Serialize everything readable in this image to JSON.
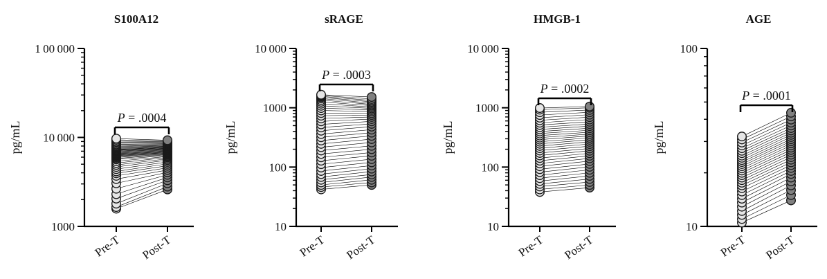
{
  "colors": {
    "pre_fill": "#e6e6e6",
    "post_fill": "#808080",
    "marker_stroke": "#1a1a1a",
    "axis": "#000000",
    "pair_line": "#000000"
  },
  "chart_data": [
    {
      "type": "scatter",
      "title": "S100A12",
      "ylabel": "pg/mL",
      "yscale": "log",
      "ylim": [
        1000,
        100000
      ],
      "yticks": [
        1000,
        10000,
        100000
      ],
      "ytick_labels": [
        "1000",
        "10 000",
        "1 00 000"
      ],
      "categories": [
        "Pre-T",
        "Post-T"
      ],
      "p_value": ".0004",
      "series": [
        {
          "name": "Pre-T",
          "values": [
            1580,
            1650,
            1800,
            2050,
            2300,
            2650,
            3050,
            3400,
            3700,
            3950,
            4150,
            4400,
            4650,
            4900,
            5150,
            5400,
            5650,
            5800,
            5950,
            6100,
            6200,
            6300,
            6400,
            6500,
            6600,
            6700,
            6850,
            6950,
            7050,
            7150,
            7250,
            7350,
            7500,
            7650,
            7800,
            7950,
            8150,
            8350,
            8600,
            8850,
            9100,
            9400,
            9700
          ]
        },
        {
          "name": "Post-T",
          "values": [
            2600,
            2800,
            3050,
            3300,
            3550,
            3800,
            4050,
            4300,
            4550,
            4800,
            5050,
            5300,
            5550,
            5750,
            5950,
            6100,
            6250,
            6400,
            6500,
            6600,
            6700,
            6800,
            6900,
            7000,
            7100,
            7200,
            7300,
            7400,
            7500,
            7600,
            7700,
            7800,
            7900,
            8000,
            8100,
            8200,
            8350,
            8500,
            8650,
            8800,
            8950,
            9100,
            9300
          ]
        }
      ]
    },
    {
      "type": "scatter",
      "title": "sRAGE",
      "ylabel": "pg/mL",
      "yscale": "log",
      "ylim": [
        10,
        10000
      ],
      "yticks": [
        10,
        100,
        1000,
        10000
      ],
      "ytick_labels": [
        "10",
        "100",
        "1000",
        "10 000"
      ],
      "categories": [
        "Pre-T",
        "Post-T"
      ],
      "p_value": ".0003",
      "series": [
        {
          "name": "Pre-T",
          "values": [
            42,
            46,
            50,
            55,
            61,
            68,
            76,
            86,
            98,
            112,
            128,
            146,
            166,
            190,
            216,
            246,
            280,
            318,
            360,
            410,
            465,
            525,
            590,
            660,
            735,
            815,
            900,
            990,
            1080,
            1170,
            1260,
            1350,
            1430,
            1500,
            1560,
            1610,
            1660
          ]
        },
        {
          "name": "Post-T",
          "values": [
            50,
            55,
            61,
            68,
            75,
            84,
            94,
            106,
            120,
            136,
            155,
            176,
            200,
            228,
            260,
            296,
            336,
            380,
            428,
            480,
            535,
            590,
            645,
            700,
            755,
            810,
            865,
            920,
            975,
            1030,
            1085,
            1140,
            1200,
            1260,
            1330,
            1410,
            1520
          ]
        }
      ]
    },
    {
      "type": "scatter",
      "title": "HMGB-1",
      "ylabel": "pg/mL",
      "yscale": "log",
      "ylim": [
        10,
        10000
      ],
      "yticks": [
        10,
        100,
        1000,
        10000
      ],
      "ytick_labels": [
        "10",
        "100",
        "1000",
        "10 000"
      ],
      "categories": [
        "Pre-T",
        "Post-T"
      ],
      "p_value": ".0002",
      "series": [
        {
          "name": "Pre-T",
          "values": [
            38,
            42,
            47,
            52,
            58,
            65,
            73,
            82,
            92,
            103,
            115,
            128,
            142,
            157,
            173,
            190,
            208,
            227,
            247,
            268,
            290,
            314,
            340,
            368,
            398,
            432,
            470,
            512,
            560,
            615,
            680,
            755,
            840,
            930,
            990
          ]
        },
        {
          "name": "Post-T",
          "values": [
            45,
            50,
            56,
            63,
            71,
            80,
            90,
            101,
            113,
            126,
            140,
            155,
            171,
            188,
            206,
            225,
            245,
            266,
            288,
            311,
            335,
            360,
            388,
            418,
            452,
            490,
            532,
            580,
            634,
            695,
            765,
            840,
            920,
            1000,
            1050
          ]
        }
      ]
    },
    {
      "type": "scatter",
      "title": "AGE",
      "ylabel": "pg/mL",
      "yscale": "log",
      "ylim": [
        10,
        100
      ],
      "yticks": [
        10,
        100
      ],
      "ytick_labels": [
        "10",
        "100"
      ],
      "categories": [
        "Pre-T",
        "Post-T"
      ],
      "p_value": ".0001",
      "series": [
        {
          "name": "Pre-T",
          "values": [
            10.5,
            11.0,
            11.6,
            12.2,
            12.9,
            13.6,
            14.3,
            15.0,
            15.7,
            16.4,
            17.0,
            17.6,
            18.2,
            18.8,
            19.4,
            20.0,
            20.6,
            21.2,
            21.8,
            22.4,
            23.0,
            23.6,
            24.3,
            25.0,
            25.8,
            26.6,
            27.5,
            28.5,
            29.6,
            30.8,
            32.0
          ]
        },
        {
          "name": "Post-T",
          "values": [
            14.0,
            15.0,
            16.0,
            17.0,
            17.9,
            18.8,
            19.7,
            20.5,
            21.3,
            22.1,
            22.9,
            23.7,
            24.5,
            25.3,
            26.1,
            26.9,
            27.7,
            28.5,
            29.3,
            30.1,
            30.9,
            31.8,
            32.7,
            33.6,
            34.6,
            35.7,
            36.9,
            38.3,
            39.8,
            41.5,
            43.5
          ]
        }
      ]
    }
  ]
}
